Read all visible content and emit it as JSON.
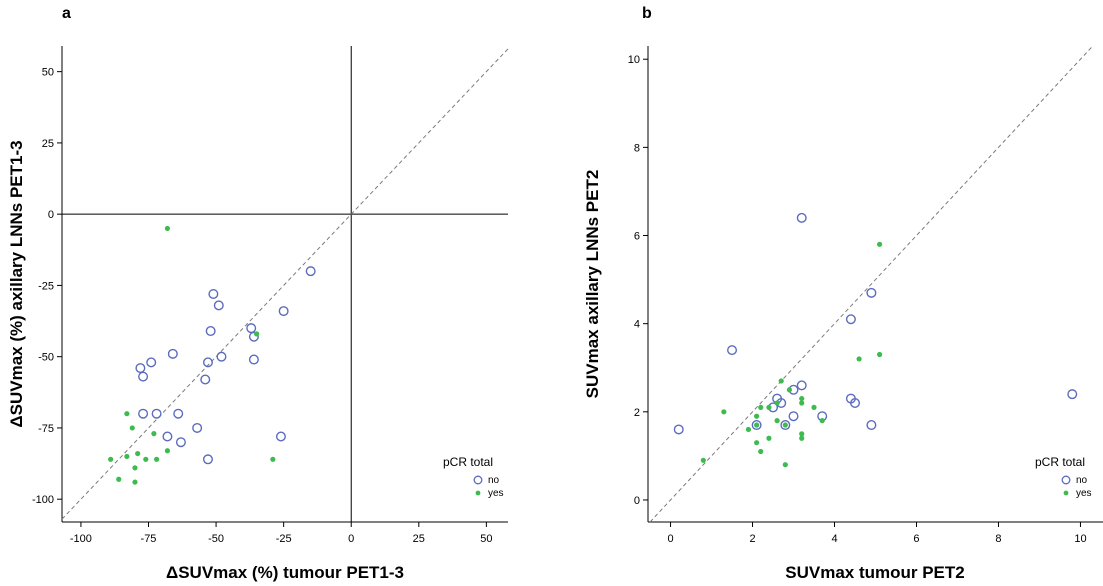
{
  "chart_data": [
    {
      "type": "scatter",
      "panel_label": "a",
      "xlabel": "ΔSUVmax (%) tumour PET1-3",
      "ylabel": "ΔSUVmax (%) axillary LNNs PET1-3",
      "xlim": [
        -107,
        58
      ],
      "ylim": [
        -108,
        59
      ],
      "xticks": [
        -100,
        -75,
        -50,
        -25,
        0,
        25,
        50
      ],
      "yticks": [
        -100,
        -75,
        -50,
        -25,
        0,
        25,
        50
      ],
      "xtick_labels": [
        "-100",
        "-75",
        "-50",
        "-25",
        "0",
        "25",
        "50"
      ],
      "ytick_labels": [
        "-100",
        "-75",
        "-50",
        "-25",
        "0",
        "25",
        "50"
      ],
      "reference_lines": [
        "x=0",
        "y=0",
        "identity"
      ],
      "legend": {
        "title": "pCR total",
        "placement": "bottom-right"
      },
      "series": [
        {
          "name": "no",
          "marker": "open-circle",
          "color": "#5B6BBF",
          "points": [
            [
              -15,
              -20
            ],
            [
              -25,
              -34
            ],
            [
              -51,
              -28
            ],
            [
              -49,
              -32
            ],
            [
              -52,
              -41
            ],
            [
              -37,
              -40
            ],
            [
              -36,
              -43
            ],
            [
              -36,
              -51
            ],
            [
              -48,
              -50
            ],
            [
              -53,
              -52
            ],
            [
              -66,
              -49
            ],
            [
              -78,
              -54
            ],
            [
              -77,
              -57
            ],
            [
              -74,
              -52
            ],
            [
              -54,
              -58
            ],
            [
              -77,
              -70
            ],
            [
              -72,
              -70
            ],
            [
              -64,
              -70
            ],
            [
              -57,
              -75
            ],
            [
              -68,
              -78
            ],
            [
              -63,
              -80
            ],
            [
              -26,
              -78
            ],
            [
              -53,
              -86
            ]
          ]
        },
        {
          "name": "yes",
          "marker": "filled-dot",
          "color": "#3DBB4F",
          "points": [
            [
              -68,
              -5
            ],
            [
              -35,
              -42
            ],
            [
              -83,
              -70
            ],
            [
              -81,
              -75
            ],
            [
              -73,
              -77
            ],
            [
              -89,
              -86
            ],
            [
              -83,
              -85
            ],
            [
              -79,
              -84
            ],
            [
              -76,
              -86
            ],
            [
              -72,
              -86
            ],
            [
              -68,
              -83
            ],
            [
              -80,
              -89
            ],
            [
              -86,
              -93
            ],
            [
              -80,
              -94
            ],
            [
              -29,
              -86
            ]
          ]
        }
      ]
    },
    {
      "type": "scatter",
      "panel_label": "b",
      "xlabel": "SUVmax tumour PET2",
      "ylabel": "SUVmax axillary LNNs PET2",
      "xlim": [
        -0.55,
        10.55
      ],
      "ylim": [
        -0.5,
        10.3
      ],
      "xticks": [
        0,
        2,
        4,
        6,
        8,
        10
      ],
      "yticks": [
        0,
        2,
        4,
        6,
        8,
        10
      ],
      "xtick_labels": [
        "0",
        "2",
        "4",
        "6",
        "8",
        "10"
      ],
      "ytick_labels": [
        "0",
        "2",
        "4",
        "6",
        "8",
        "10"
      ],
      "reference_lines": [
        "identity"
      ],
      "legend": {
        "title": "pCR total",
        "placement": "bottom-right"
      },
      "series": [
        {
          "name": "no",
          "marker": "open-circle",
          "color": "#5B6BBF",
          "points": [
            [
              3.2,
              6.4
            ],
            [
              4.9,
              4.7
            ],
            [
              4.4,
              4.1
            ],
            [
              1.5,
              3.4
            ],
            [
              3.2,
              2.6
            ],
            [
              3.0,
              2.5
            ],
            [
              2.7,
              2.2
            ],
            [
              2.5,
              2.1
            ],
            [
              2.6,
              2.3
            ],
            [
              4.4,
              2.3
            ],
            [
              4.5,
              2.2
            ],
            [
              3.0,
              1.9
            ],
            [
              3.7,
              1.9
            ],
            [
              2.1,
              1.7
            ],
            [
              2.8,
              1.7
            ],
            [
              4.9,
              1.7
            ],
            [
              0.2,
              1.6
            ],
            [
              9.8,
              2.4
            ]
          ]
        },
        {
          "name": "yes",
          "marker": "filled-dot",
          "color": "#3DBB4F",
          "points": [
            [
              5.1,
              5.8
            ],
            [
              4.6,
              3.2
            ],
            [
              5.1,
              3.3
            ],
            [
              2.7,
              2.7
            ],
            [
              2.9,
              2.5
            ],
            [
              3.2,
              2.3
            ],
            [
              3.2,
              2.2
            ],
            [
              2.6,
              2.2
            ],
            [
              2.2,
              2.1
            ],
            [
              2.4,
              2.1
            ],
            [
              1.3,
              2.0
            ],
            [
              2.1,
              1.9
            ],
            [
              3.5,
              2.1
            ],
            [
              2.6,
              1.8
            ],
            [
              3.7,
              1.8
            ],
            [
              2.1,
              1.7
            ],
            [
              2.8,
              1.7
            ],
            [
              1.9,
              1.6
            ],
            [
              3.2,
              1.5
            ],
            [
              3.2,
              1.4
            ],
            [
              2.4,
              1.4
            ],
            [
              2.1,
              1.3
            ],
            [
              2.2,
              1.1
            ],
            [
              0.8,
              0.9
            ],
            [
              2.8,
              0.8
            ]
          ]
        }
      ]
    }
  ]
}
